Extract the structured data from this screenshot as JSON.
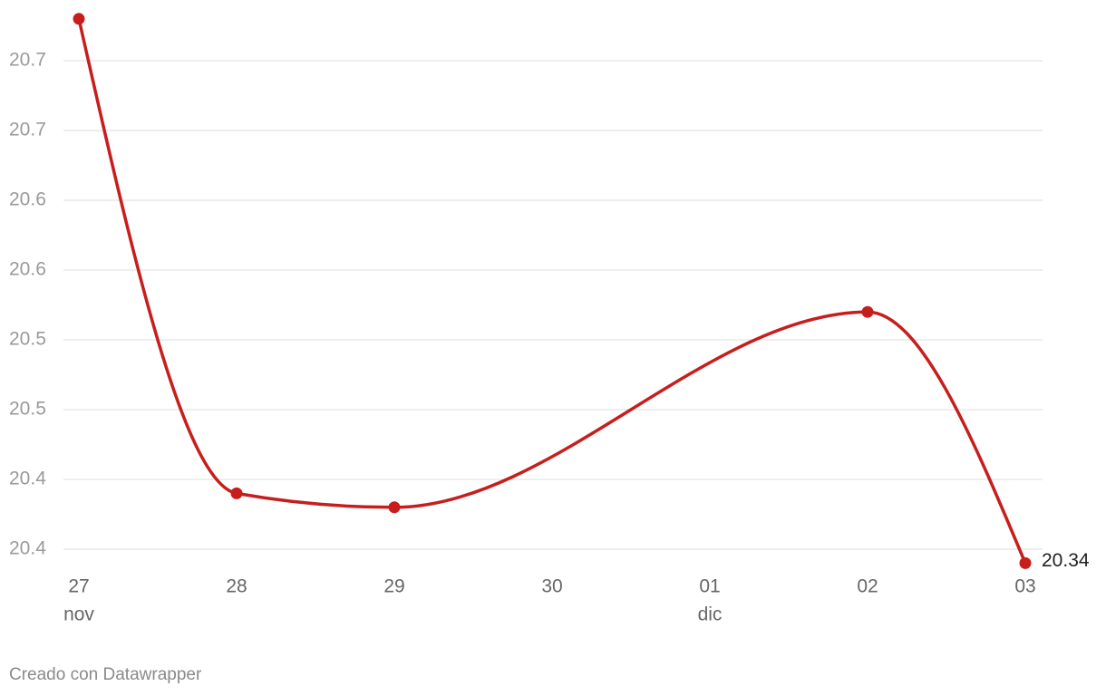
{
  "chart_data": {
    "type": "line",
    "x": [
      "27 nov",
      "28 nov",
      "29 nov",
      "02 dic",
      "03 dic"
    ],
    "series": [
      {
        "color": "#c71e1d",
        "values": [
          20.73,
          20.39,
          20.38,
          20.52,
          20.34
        ]
      }
    ],
    "xlim": [
      "27 nov",
      "03 dic"
    ],
    "xticks": [
      {
        "value": "27 nov",
        "label": "27"
      },
      {
        "value": "28 nov",
        "label": "28"
      },
      {
        "value": "29 nov",
        "label": "29"
      },
      {
        "value": "30 nov",
        "label": "30"
      },
      {
        "value": "01 dic",
        "label": "01"
      },
      {
        "value": "02 dic",
        "label": "02"
      },
      {
        "value": "03 dic",
        "label": "03"
      }
    ],
    "x_month_labels": [
      {
        "value": "27 nov",
        "label": "nov"
      },
      {
        "value": "01 dic",
        "label": "dic"
      }
    ],
    "ylim": [
      20.35,
      20.7
    ],
    "yticks": [
      {
        "value": 20.35,
        "label": "20.4"
      },
      20.4,
      {
        "value": 20.45,
        "label": "20.5"
      },
      20.5,
      {
        "value": 20.55,
        "label": "20.6"
      },
      20.6,
      {
        "value": 20.65,
        "label": "20.7"
      },
      20.7
    ],
    "grid": true,
    "last_value_label": true,
    "footer": "Creado con Datawrapper"
  }
}
